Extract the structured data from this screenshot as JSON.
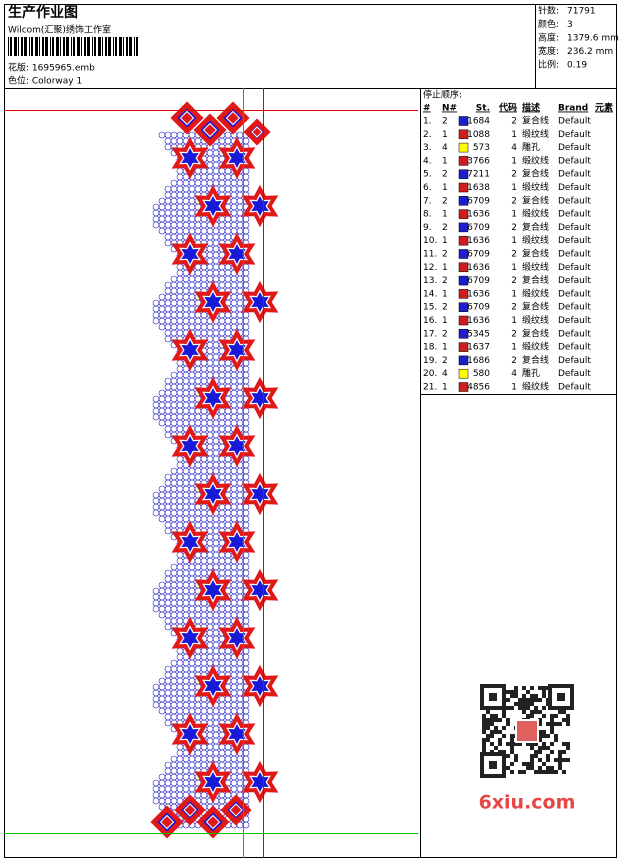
{
  "header": {
    "title": "生产作业图",
    "studio": "Wilcom(汇聚)绣饰工作室",
    "design": "花版: 1695965.emb",
    "colorway": "色位: Colorway 1"
  },
  "info": [
    {
      "label": "针数:",
      "value": "71791"
    },
    {
      "label": "颜色:",
      "value": "3"
    },
    {
      "label": "高度:",
      "value": "1379.6 mm"
    },
    {
      "label": "宽度:",
      "value": "236.2 mm"
    },
    {
      "label": "比例:",
      "value": "0.19"
    }
  ],
  "table": {
    "title": "停止顺序:",
    "columns": [
      "#",
      "N#",
      "St.",
      "代码",
      "描述",
      "Brand",
      "元素"
    ],
    "rows": [
      {
        "num": "1.",
        "n": "2",
        "color": "#1c1cd0",
        "code": "1684",
        "st": "2",
        "desc": "复合线",
        "brand": "Default"
      },
      {
        "num": "2.",
        "n": "1",
        "color": "#d01c1c",
        "code": "1088",
        "st": "1",
        "desc": "缎纹线",
        "brand": "Default"
      },
      {
        "num": "3.",
        "n": "4",
        "color": "#ffff00",
        "code": "573",
        "st": "4",
        "desc": "雕孔",
        "brand": "Default"
      },
      {
        "num": "4.",
        "n": "1",
        "color": "#d01c1c",
        "code": "3766",
        "st": "1",
        "desc": "缎纹线",
        "brand": "Default"
      },
      {
        "num": "5.",
        "n": "2",
        "color": "#1c1cd0",
        "code": "7211",
        "st": "2",
        "desc": "复合线",
        "brand": "Default"
      },
      {
        "num": "6.",
        "n": "1",
        "color": "#d01c1c",
        "code": "1638",
        "st": "1",
        "desc": "缎纹线",
        "brand": "Default"
      },
      {
        "num": "7.",
        "n": "2",
        "color": "#1c1cd0",
        "code": "6709",
        "st": "2",
        "desc": "复合线",
        "brand": "Default"
      },
      {
        "num": "8.",
        "n": "1",
        "color": "#d01c1c",
        "code": "1636",
        "st": "1",
        "desc": "缎纹线",
        "brand": "Default"
      },
      {
        "num": "9.",
        "n": "2",
        "color": "#1c1cd0",
        "code": "6709",
        "st": "2",
        "desc": "复合线",
        "brand": "Default"
      },
      {
        "num": "10.",
        "n": "1",
        "color": "#d01c1c",
        "code": "1636",
        "st": "1",
        "desc": "缎纹线",
        "brand": "Default"
      },
      {
        "num": "11.",
        "n": "2",
        "color": "#1c1cd0",
        "code": "6709",
        "st": "2",
        "desc": "复合线",
        "brand": "Default"
      },
      {
        "num": "12.",
        "n": "1",
        "color": "#d01c1c",
        "code": "1636",
        "st": "1",
        "desc": "缎纹线",
        "brand": "Default"
      },
      {
        "num": "13.",
        "n": "2",
        "color": "#1c1cd0",
        "code": "6709",
        "st": "2",
        "desc": "复合线",
        "brand": "Default"
      },
      {
        "num": "14.",
        "n": "1",
        "color": "#d01c1c",
        "code": "1636",
        "st": "1",
        "desc": "缎纹线",
        "brand": "Default"
      },
      {
        "num": "15.",
        "n": "2",
        "color": "#1c1cd0",
        "code": "6709",
        "st": "2",
        "desc": "复合线",
        "brand": "Default"
      },
      {
        "num": "16.",
        "n": "1",
        "color": "#d01c1c",
        "code": "1636",
        "st": "1",
        "desc": "缎纹线",
        "brand": "Default"
      },
      {
        "num": "17.",
        "n": "2",
        "color": "#1c1cd0",
        "code": "5345",
        "st": "2",
        "desc": "复合线",
        "brand": "Default"
      },
      {
        "num": "18.",
        "n": "1",
        "color": "#d01c1c",
        "code": "1637",
        "st": "1",
        "desc": "缎纹线",
        "brand": "Default"
      },
      {
        "num": "19.",
        "n": "2",
        "color": "#1c1cd0",
        "code": "1686",
        "st": "2",
        "desc": "复合线",
        "brand": "Default"
      },
      {
        "num": "20.",
        "n": "4",
        "color": "#ffff00",
        "code": "580",
        "st": "4",
        "desc": "雕孔",
        "brand": "Default"
      },
      {
        "num": "21.",
        "n": "1",
        "color": "#d01c1c",
        "code": "4856",
        "st": "1",
        "desc": "缎纹线",
        "brand": "Default"
      }
    ]
  },
  "watermark": "6xiu.com"
}
